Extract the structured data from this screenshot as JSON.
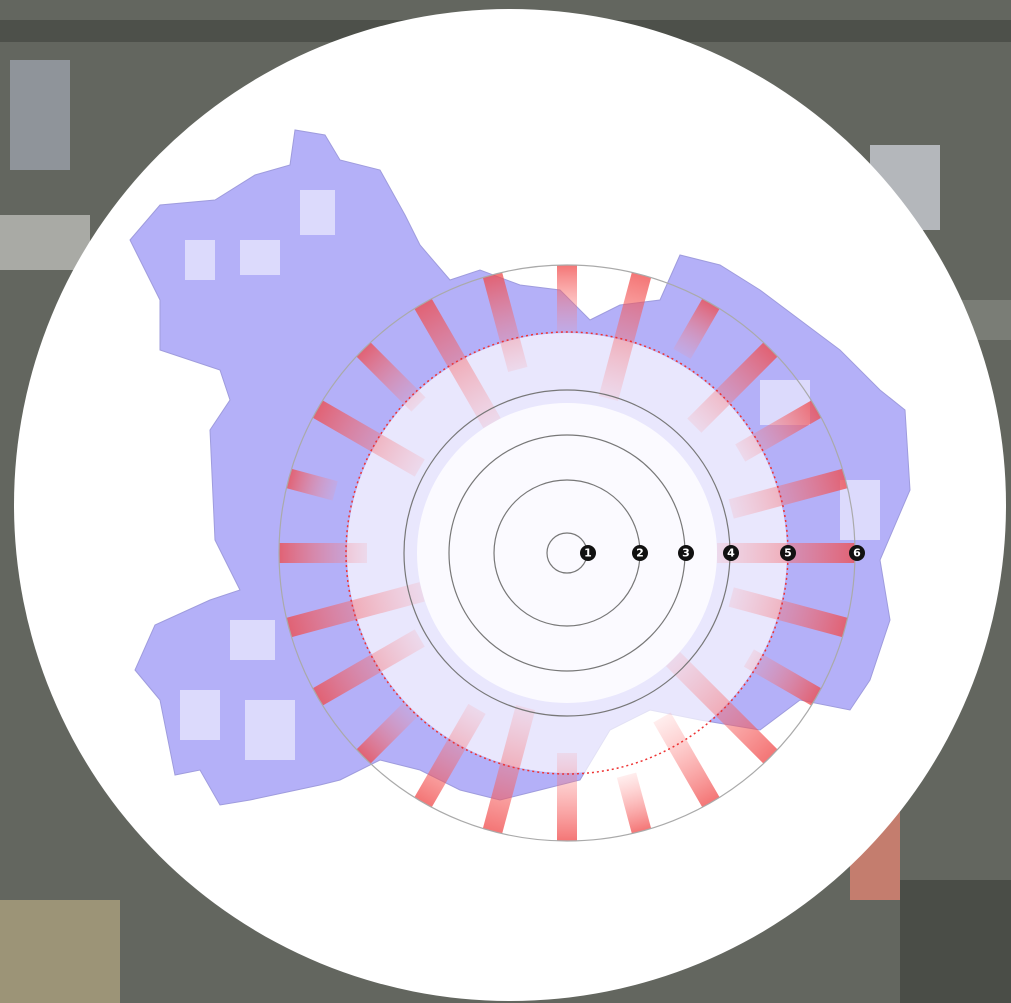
{
  "map": {
    "ring_labels": [
      "1",
      "2",
      "3",
      "4",
      "5",
      "6"
    ]
  }
}
